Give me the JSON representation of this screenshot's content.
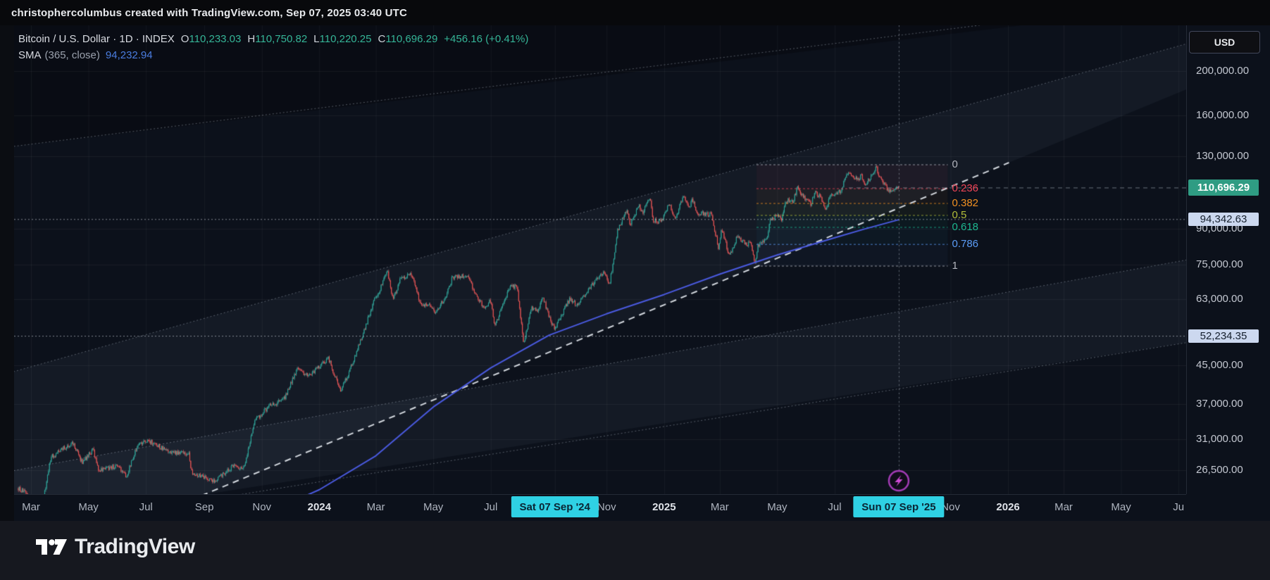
{
  "header": {
    "credit": "christophercolumbus created with TradingView.com, Sep 07, 2025 03:40 UTC"
  },
  "toolbar": {
    "currency_label": "USD"
  },
  "legend": {
    "title": "Bitcoin / U.S. Dollar · 1D · INDEX",
    "ohlc": [
      {
        "k": "O",
        "v": "110,233.03"
      },
      {
        "k": "H",
        "v": "110,750.82"
      },
      {
        "k": "L",
        "v": "110,220.25"
      },
      {
        "k": "C",
        "v": "110,696.29"
      }
    ],
    "change": "+456.16 (+0.41%)",
    "sma_name": "SMA",
    "sma_params": "(365, close)",
    "sma_value": "94,232.94"
  },
  "footer": {
    "brand": "TradingView"
  },
  "colors": {
    "up": "#26a69a",
    "down": "#ef5350",
    "sma_line": "#4a5ae0",
    "last_badge": "#2f9c83",
    "line_badge": "#ccd8ef",
    "date_badge": "#2fd1e4"
  },
  "chart_data": {
    "type": "candlestick",
    "symbol": "Bitcoin / U.S. Dollar",
    "interval": "1D",
    "exchange": "INDEX",
    "scale": "log",
    "ohlc": {
      "open": 110233.03,
      "high": 110750.82,
      "low": 110220.25,
      "close": 110696.29,
      "change": 456.16,
      "change_pct": 0.41
    },
    "last_price_label": "110,696.29",
    "sma": {
      "period": 365,
      "source": "close",
      "value": 94232.94
    },
    "price_axis_ticks": [
      {
        "label": "200,000.00",
        "value": 200000
      },
      {
        "label": "160,000.00",
        "value": 160000
      },
      {
        "label": "130,000.00",
        "value": 130000
      },
      {
        "label": "90,000.00",
        "value": 90000
      },
      {
        "label": "75,000.00",
        "value": 75000
      },
      {
        "label": "63,000.00",
        "value": 63000
      },
      {
        "label": "45,000.00",
        "value": 45000
      },
      {
        "label": "37,000.00",
        "value": 37000
      },
      {
        "label": "31,000.00",
        "value": 31000
      },
      {
        "label": "26,500.00",
        "value": 26500
      }
    ],
    "time_axis_ticks": [
      {
        "label": "Mar",
        "date": "2023-03-01",
        "type": "month"
      },
      {
        "label": "May",
        "date": "2023-05-01",
        "type": "month"
      },
      {
        "label": "Jul",
        "date": "2023-07-01",
        "type": "month"
      },
      {
        "label": "Sep",
        "date": "2023-09-01",
        "type": "month"
      },
      {
        "label": "Nov",
        "date": "2023-11-01",
        "type": "month"
      },
      {
        "label": "2024",
        "date": "2024-01-01",
        "type": "year"
      },
      {
        "label": "Mar",
        "date": "2024-03-01",
        "type": "month"
      },
      {
        "label": "May",
        "date": "2024-05-01",
        "type": "month"
      },
      {
        "label": "Jul",
        "date": "2024-07-01",
        "type": "month"
      },
      {
        "label": "Nov",
        "date": "2024-11-01",
        "type": "month"
      },
      {
        "label": "2025",
        "date": "2025-01-01",
        "type": "year"
      },
      {
        "label": "Mar",
        "date": "2025-03-01",
        "type": "month"
      },
      {
        "label": "May",
        "date": "2025-05-01",
        "type": "month"
      },
      {
        "label": "Jul",
        "date": "2025-07-01",
        "type": "month"
      },
      {
        "label": "Nov",
        "date": "2025-11-01",
        "type": "month"
      },
      {
        "label": "2026",
        "date": "2026-01-01",
        "type": "year"
      },
      {
        "label": "Mar",
        "date": "2026-03-01",
        "type": "month"
      },
      {
        "label": "May",
        "date": "2026-05-01",
        "type": "month"
      },
      {
        "label": "Ju",
        "date": "2026-07-01",
        "type": "month"
      }
    ],
    "date_markers": [
      {
        "label": "Sat 07 Sep '24",
        "date": "2024-09-07"
      },
      {
        "label": "Sun 07 Sep '25",
        "date": "2025-09-07"
      }
    ],
    "crosshair": {
      "date": "2025-09-07",
      "alert_icon": "lightning-bolt",
      "alert_price": 24500
    },
    "horizontal_lines": [
      {
        "value": 94342.63,
        "label": "94,342.63"
      },
      {
        "value": 52234.35,
        "label": "52,234.35"
      }
    ],
    "fib_retracement": {
      "from_date": "2025-04-09",
      "from_price": 74500,
      "to_date": "2025-08-14",
      "to_price": 124457,
      "extend_to_date": "2025-10-29",
      "levels": [
        {
          "level": 0,
          "label": "0",
          "color": "#b2b5be"
        },
        {
          "level": 0.236,
          "label": "0.236",
          "color": "#ef4456"
        },
        {
          "level": 0.382,
          "label": "0.382",
          "color": "#f09022"
        },
        {
          "level": 0.5,
          "label": "0.5",
          "color": "#b2bd3a"
        },
        {
          "level": 0.618,
          "label": "0.618",
          "color": "#1db790"
        },
        {
          "level": 0.786,
          "label": "0.786",
          "color": "#5b9cf6"
        },
        {
          "level": 1,
          "label": "1",
          "color": "#b2b5be"
        }
      ]
    },
    "trend_lines": [
      {
        "name": "main-uptrend-dashed",
        "from": [
          "2023-08-18",
          22800
        ],
        "to": [
          "2026-01-02",
          125800
        ],
        "style": "dashed-bright"
      },
      {
        "name": "upper-dotted-a",
        "from": [
          "2023-01-27",
          135400
        ],
        "to": [
          "2026-01-15",
          259000
        ],
        "style": "dotted"
      },
      {
        "name": "upper-dotted-b",
        "from": [
          "2023-01-27",
          42800
        ],
        "to": [
          "2026-09-26",
          255000
        ],
        "style": "dotted"
      },
      {
        "name": "lower-channel-top",
        "from": [
          "2023-01-27",
          26100
        ],
        "to": [
          "2026-10-06",
          82900
        ],
        "style": "dotted"
      },
      {
        "name": "lower-channel-bottom",
        "from": [
          "2023-09-04",
          22800
        ],
        "to": [
          "2026-10-06",
          54100
        ],
        "style": "dotted"
      }
    ],
    "price_path": [
      [
        "2023-02-15",
        24200
      ],
      [
        "2023-03-01",
        23100
      ],
      [
        "2023-03-10",
        20300
      ],
      [
        "2023-03-22",
        28300
      ],
      [
        "2023-04-14",
        30500
      ],
      [
        "2023-04-24",
        27600
      ],
      [
        "2023-05-06",
        29300
      ],
      [
        "2023-05-12",
        26500
      ],
      [
        "2023-06-01",
        27100
      ],
      [
        "2023-06-10",
        25600
      ],
      [
        "2023-06-23",
        30400
      ],
      [
        "2023-07-06",
        30600
      ],
      [
        "2023-07-24",
        29100
      ],
      [
        "2023-08-16",
        28800
      ],
      [
        "2023-08-18",
        26300
      ],
      [
        "2023-09-11",
        25100
      ],
      [
        "2023-10-01",
        27000
      ],
      [
        "2023-10-13",
        26900
      ],
      [
        "2023-10-24",
        33900
      ],
      [
        "2023-11-09",
        36700
      ],
      [
        "2023-11-24",
        37800
      ],
      [
        "2023-12-08",
        44200
      ],
      [
        "2023-12-20",
        42600
      ],
      [
        "2024-01-02",
        45000
      ],
      [
        "2024-01-11",
        46600
      ],
      [
        "2024-01-23",
        39600
      ],
      [
        "2024-02-01",
        43100
      ],
      [
        "2024-02-15",
        52000
      ],
      [
        "2024-02-28",
        62500
      ],
      [
        "2024-03-05",
        66000
      ],
      [
        "2024-03-13",
        73100
      ],
      [
        "2024-03-19",
        62500
      ],
      [
        "2024-03-27",
        69900
      ],
      [
        "2024-04-08",
        71600
      ],
      [
        "2024-04-17",
        61300
      ],
      [
        "2024-04-30",
        60600
      ],
      [
        "2024-05-02",
        58300
      ],
      [
        "2024-05-15",
        64300
      ],
      [
        "2024-05-21",
        70200
      ],
      [
        "2024-06-05",
        71100
      ],
      [
        "2024-06-24",
        59800
      ],
      [
        "2024-07-01",
        62700
      ],
      [
        "2024-07-05",
        54700
      ],
      [
        "2024-07-22",
        67500
      ],
      [
        "2024-07-29",
        66800
      ],
      [
        "2024-08-05",
        50100
      ],
      [
        "2024-08-13",
        60600
      ],
      [
        "2024-08-20",
        59000
      ],
      [
        "2024-08-25",
        64200
      ],
      [
        "2024-09-01",
        57300
      ],
      [
        "2024-09-07",
        54200
      ],
      [
        "2024-09-13",
        57600
      ],
      [
        "2024-09-23",
        63300
      ],
      [
        "2024-10-01",
        60800
      ],
      [
        "2024-10-16",
        67400
      ],
      [
        "2024-10-29",
        72200
      ],
      [
        "2024-11-04",
        68000
      ],
      [
        "2024-11-10",
        80400
      ],
      [
        "2024-11-12",
        88700
      ],
      [
        "2024-11-22",
        98900
      ],
      [
        "2024-11-26",
        91800
      ],
      [
        "2024-12-05",
        101100
      ],
      [
        "2024-12-09",
        97200
      ],
      [
        "2024-12-17",
        106100
      ],
      [
        "2024-12-20",
        93900
      ],
      [
        "2024-12-30",
        93500
      ],
      [
        "2025-01-06",
        102200
      ],
      [
        "2025-01-13",
        94300
      ],
      [
        "2025-01-21",
        106100
      ],
      [
        "2025-01-27",
        100100
      ],
      [
        "2025-01-31",
        104700
      ],
      [
        "2025-02-04",
        97600
      ],
      [
        "2025-02-20",
        96600
      ],
      [
        "2025-02-26",
        84700
      ],
      [
        "2025-02-28",
        81100
      ],
      [
        "2025-03-03",
        90000
      ],
      [
        "2025-03-11",
        78600
      ],
      [
        "2025-03-20",
        86900
      ],
      [
        "2025-03-30",
        82400
      ],
      [
        "2025-04-02",
        85200
      ],
      [
        "2025-04-08",
        74800
      ],
      [
        "2025-04-10",
        82000
      ],
      [
        "2025-04-14",
        84500
      ],
      [
        "2025-04-20",
        85200
      ],
      [
        "2025-04-23",
        93400
      ],
      [
        "2025-05-01",
        96500
      ],
      [
        "2025-05-06",
        94300
      ],
      [
        "2025-05-09",
        102900
      ],
      [
        "2025-05-14",
        104100
      ],
      [
        "2025-05-18",
        103500
      ],
      [
        "2025-05-22",
        110700
      ],
      [
        "2025-05-26",
        107300
      ],
      [
        "2025-05-31",
        104600
      ],
      [
        "2025-06-06",
        101600
      ],
      [
        "2025-06-10",
        108600
      ],
      [
        "2025-06-16",
        105200
      ],
      [
        "2025-06-22",
        99500
      ],
      [
        "2025-06-26",
        107000
      ],
      [
        "2025-07-03",
        107800
      ],
      [
        "2025-07-08",
        108900
      ],
      [
        "2025-07-11",
        115900
      ],
      [
        "2025-07-14",
        119100
      ],
      [
        "2025-07-19",
        117900
      ],
      [
        "2025-07-25",
        115800
      ],
      [
        "2025-07-30",
        117700
      ],
      [
        "2025-08-02",
        112500
      ],
      [
        "2025-08-08",
        116500
      ],
      [
        "2025-08-13",
        120700
      ],
      [
        "2025-08-14",
        123300
      ],
      [
        "2025-08-17",
        118200
      ],
      [
        "2025-08-22",
        112900
      ],
      [
        "2025-08-26",
        110100
      ],
      [
        "2025-08-30",
        108500
      ],
      [
        "2025-09-01",
        108200
      ],
      [
        "2025-09-04",
        111100
      ],
      [
        "2025-09-07",
        110696.29
      ]
    ],
    "sma_path": [
      [
        "2023-02-15",
        21700
      ],
      [
        "2023-05-01",
        20600
      ],
      [
        "2023-07-01",
        20000
      ],
      [
        "2023-09-01",
        20100
      ],
      [
        "2023-11-01",
        21100
      ],
      [
        "2024-01-01",
        24000
      ],
      [
        "2024-03-01",
        28500
      ],
      [
        "2024-05-01",
        36500
      ],
      [
        "2024-07-01",
        44500
      ],
      [
        "2024-09-01",
        52500
      ],
      [
        "2024-11-01",
        58500
      ],
      [
        "2025-01-01",
        64500
      ],
      [
        "2025-03-01",
        71500
      ],
      [
        "2025-05-01",
        78800
      ],
      [
        "2025-07-01",
        86000
      ],
      [
        "2025-08-01",
        89800
      ],
      [
        "2025-09-07",
        94232.94
      ]
    ]
  }
}
